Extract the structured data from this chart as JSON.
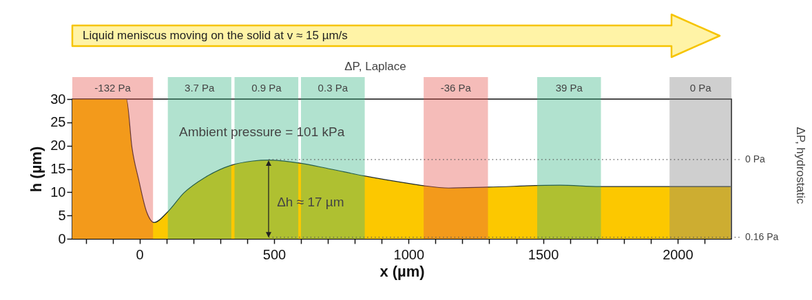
{
  "chart_data": {
    "type": "area",
    "xlabel": "x (µm)",
    "ylabel": "h (µm)",
    "x": [
      -250,
      -49,
      -28,
      -3,
      26,
      54,
      105,
      164,
      244,
      341,
      421,
      480,
      589,
      707,
      835,
      1021,
      1056,
      1149,
      1297,
      1563,
      1710,
      2197
    ],
    "series": [
      {
        "color": "#fcc800",
        "values": [
          30,
          30,
          19.5,
          12.6,
          5.8,
          3.5,
          5.8,
          9.8,
          13.2,
          15.8,
          16.7,
          16.9,
          16.3,
          15.0,
          13.5,
          11.7,
          11.4,
          10.9,
          11.1,
          11.5,
          11.2,
          11.2
        ]
      }
    ],
    "xlim": [
      -250,
      2200
    ],
    "ylim": [
      0,
      30
    ],
    "xticks": [
      {
        "value": -200,
        "label": null
      },
      {
        "value": -100,
        "label": null
      },
      0,
      {
        "value": 100,
        "label": null
      },
      {
        "value": 200,
        "label": null
      },
      {
        "value": 300,
        "label": null
      },
      {
        "value": 400,
        "label": null
      },
      500,
      {
        "value": 600,
        "label": null
      },
      {
        "value": 700,
        "label": null
      },
      {
        "value": 800,
        "label": null
      },
      {
        "value": 900,
        "label": null
      },
      1000,
      {
        "value": 1100,
        "label": null
      },
      {
        "value": 1200,
        "label": null
      },
      {
        "value": 1300,
        "label": null
      },
      {
        "value": 1400,
        "label": null
      },
      1500,
      {
        "value": 1600,
        "label": null
      },
      {
        "value": 1700,
        "label": null
      },
      {
        "value": 1800,
        "label": null
      },
      {
        "value": 1900,
        "label": null
      },
      2000,
      {
        "value": 2100,
        "label": null
      }
    ],
    "yticks": [
      0,
      5,
      10,
      15,
      20,
      25,
      30
    ],
    "bands": [
      {
        "axis": "x",
        "from": -250,
        "to": 50,
        "label": "-132 Pa",
        "color": "#e65046"
      },
      {
        "axis": "x",
        "from": 105,
        "to": 341,
        "label": "3.7 Pa",
        "color": "#32b482"
      },
      {
        "axis": "x",
        "from": 353,
        "to": 590,
        "label": "0.9 Pa",
        "color": "#32b482"
      },
      {
        "axis": "x",
        "from": 600,
        "to": 837,
        "label": "0.3 Pa",
        "color": "#32b482"
      },
      {
        "axis": "x",
        "from": 1056,
        "to": 1295,
        "label": "-36 Pa",
        "color": "#e65046"
      },
      {
        "axis": "x",
        "from": 1478,
        "to": 1715,
        "label": "39 Pa",
        "color": "#32b482"
      },
      {
        "axis": "x",
        "from": 1970,
        "to": 2200,
        "label": "0 Pa",
        "color": "#808080"
      }
    ],
    "ref_lines": [
      {
        "axis": "y",
        "value": 17,
        "label": "0 Pa",
        "line_style": "dotted",
        "color": "#555555"
      },
      {
        "axis": "y",
        "value": 0.3,
        "label": "0.16 Pa",
        "line_style": "dotted",
        "color": "#555555"
      }
    ],
    "annotations": [
      "Liquid meniscus moving on the solid at v ≈ 15 µm/s",
      "ΔP, Laplace",
      "Ambient pressure = 101 kPa",
      "Δh ≈ 17 µm",
      "ΔP, hydrostatic"
    ],
    "grid": false
  }
}
